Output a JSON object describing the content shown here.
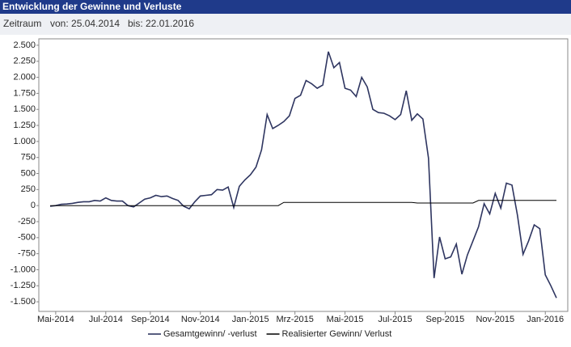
{
  "header": {
    "title": "Entwicklung der Gewinne und Verluste",
    "period_label": "Zeitraum",
    "from": "von: 25.04.2014",
    "to": "bis: 22.01.2016"
  },
  "chart_data": {
    "type": "line",
    "categories": [
      null,
      "Mai-2014",
      null,
      null,
      null,
      null,
      null,
      null,
      null,
      null,
      "Jul-2014",
      null,
      null,
      null,
      null,
      null,
      null,
      null,
      "Sep-2014",
      null,
      null,
      null,
      null,
      null,
      null,
      null,
      null,
      "Nov-2014",
      null,
      null,
      null,
      null,
      null,
      null,
      null,
      null,
      "Jan-2015",
      null,
      null,
      null,
      null,
      null,
      null,
      null,
      "Mrz-2015",
      null,
      null,
      null,
      null,
      null,
      null,
      null,
      null,
      "Mai-2015",
      null,
      null,
      null,
      null,
      null,
      null,
      null,
      null,
      "Jul-2015",
      null,
      null,
      null,
      null,
      null,
      null,
      null,
      null,
      "Sep-2015",
      null,
      null,
      null,
      null,
      null,
      null,
      null,
      null,
      "Nov-2015",
      null,
      null,
      null,
      null,
      null,
      null,
      null,
      null,
      "Jan-2016",
      null,
      null
    ],
    "series": [
      {
        "name": "Gesamtgewinn/ -verlust",
        "color": "#2e3560",
        "values": [
          -10,
          0,
          20,
          25,
          35,
          50,
          60,
          60,
          80,
          70,
          120,
          80,
          70,
          70,
          0,
          -20,
          40,
          100,
          120,
          160,
          140,
          150,
          110,
          80,
          -10,
          -50,
          60,
          150,
          160,
          170,
          250,
          240,
          290,
          -30,
          300,
          400,
          480,
          600,
          870,
          1420,
          1200,
          1250,
          1310,
          1400,
          1670,
          1720,
          1950,
          1900,
          1830,
          1880,
          2400,
          2150,
          2230,
          1830,
          1800,
          1700,
          2000,
          1850,
          1500,
          1450,
          1440,
          1400,
          1340,
          1420,
          1790,
          1330,
          1430,
          1350,
          740,
          -1130,
          -490,
          -830,
          -800,
          -600,
          -1070,
          -770,
          -550,
          -330,
          30,
          -130,
          190,
          -40,
          350,
          320,
          -150,
          -760,
          -550,
          -300,
          -360,
          -1080,
          -1250,
          -1440
        ]
      },
      {
        "name": "Realisierter Gewinn/ Verlust",
        "color": "#000000",
        "values": [
          0,
          0,
          0,
          0,
          0,
          0,
          0,
          0,
          0,
          0,
          0,
          0,
          0,
          0,
          0,
          0,
          0,
          0,
          0,
          0,
          0,
          0,
          0,
          0,
          0,
          0,
          0,
          0,
          0,
          0,
          0,
          0,
          0,
          0,
          0,
          0,
          0,
          0,
          0,
          0,
          0,
          0,
          50,
          50,
          50,
          50,
          50,
          50,
          50,
          50,
          50,
          50,
          50,
          50,
          50,
          50,
          50,
          50,
          50,
          50,
          50,
          50,
          50,
          50,
          50,
          50,
          40,
          40,
          40,
          40,
          40,
          40,
          40,
          40,
          40,
          40,
          40,
          80,
          80,
          80,
          80,
          80,
          80,
          80,
          80,
          80,
          80,
          80,
          80,
          80,
          80,
          80
        ]
      }
    ],
    "ylim": [
      -1650,
      2600
    ],
    "yticks": [
      {
        "value": 2500,
        "label": "2.500"
      },
      {
        "value": 2250,
        "label": "2.250"
      },
      {
        "value": 2000,
        "label": "2.000"
      },
      {
        "value": 1750,
        "label": "1.750"
      },
      {
        "value": 1500,
        "label": "1.500"
      },
      {
        "value": 1250,
        "label": "1.250"
      },
      {
        "value": 1000,
        "label": "1.000"
      },
      750,
      500,
      250,
      0,
      -250,
      -500,
      -750,
      {
        "value": -1000,
        "label": "-1.000"
      },
      {
        "value": -1250,
        "label": "-1.250"
      },
      {
        "value": -1500,
        "label": "-1.500"
      }
    ],
    "grid": false
  }
}
